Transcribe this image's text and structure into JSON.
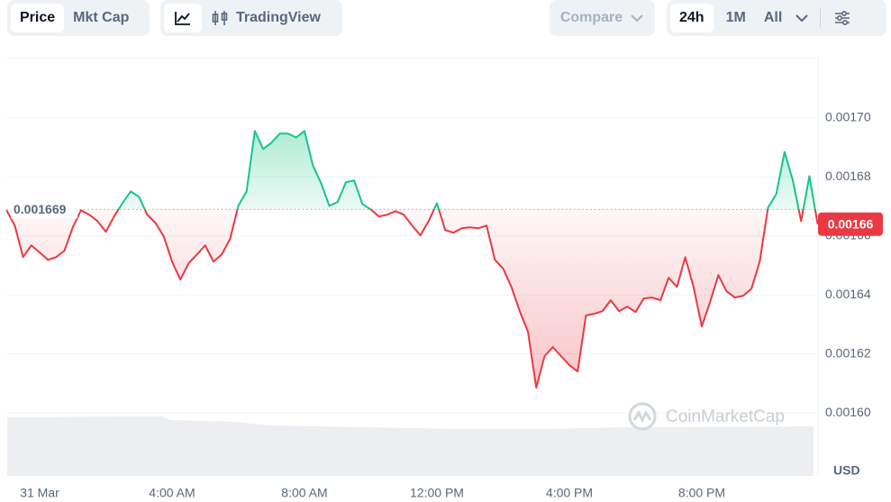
{
  "toolbar": {
    "price": "Price",
    "mkt_cap": "Mkt Cap",
    "trading_view": "TradingView",
    "compare": "Compare",
    "range_24h": "24h",
    "range_1m": "1M",
    "range_all": "All"
  },
  "chart_data": {
    "type": "line",
    "x": [
      -1,
      -0.75,
      -0.5,
      -0.25,
      0,
      0.25,
      0.5,
      0.75,
      1,
      1.25,
      1.5,
      1.75,
      2,
      2.25,
      2.5,
      2.75,
      3,
      3.25,
      3.5,
      3.75,
      4,
      4.25,
      4.5,
      4.75,
      5,
      5.25,
      5.5,
      5.75,
      6,
      6.25,
      6.5,
      6.75,
      7,
      7.25,
      7.5,
      7.75,
      8,
      8.25,
      8.5,
      8.75,
      9,
      9.25,
      9.5,
      9.75,
      10,
      10.25,
      10.5,
      10.75,
      11,
      11.25,
      11.5,
      11.75,
      12,
      12.25,
      12.5,
      12.75,
      13,
      13.25,
      13.5,
      13.75,
      14,
      14.25,
      14.5,
      14.75,
      15,
      15.25,
      15.5,
      15.75,
      16,
      16.25,
      16.5,
      16.75,
      17,
      17.25,
      17.5,
      17.75,
      18,
      18.25,
      18.5,
      18.75,
      19,
      19.25,
      19.5,
      19.75,
      20,
      20.25,
      20.5,
      20.75,
      21,
      21.25,
      21.5,
      21.75,
      22,
      22.25,
      22.5,
      22.75,
      23,
      23.25,
      23.5
    ],
    "series": [
      {
        "values": [
          0.0016687,
          0.0016635,
          0.0016528,
          0.0016568,
          0.0016544,
          0.0016519,
          0.0016528,
          0.001655,
          0.0016629,
          0.0016687,
          0.0016672,
          0.001665,
          0.0016614,
          0.0016666,
          0.0016711,
          0.0016751,
          0.0016733,
          0.0016672,
          0.0016644,
          0.0016598,
          0.0016513,
          0.0016452,
          0.0016507,
          0.0016537,
          0.0016568,
          0.0016513,
          0.0016537,
          0.0016589,
          0.0016702,
          0.0016751,
          0.0016956,
          0.0016895,
          0.0016916,
          0.0016947,
          0.0016947,
          0.0016934,
          0.0016956,
          0.001684,
          0.0016779,
          0.0016702,
          0.0016715,
          0.0016782,
          0.0016788,
          0.0016708,
          0.001669,
          0.0016666,
          0.0016672,
          0.0016684,
          0.0016672,
          0.0016635,
          0.0016602,
          0.001665,
          0.0016711,
          0.001662,
          0.0016611,
          0.0016626,
          0.0016629,
          0.0016626,
          0.0016635,
          0.0016519,
          0.0016489,
          0.0016427,
          0.0016345,
          0.0016275,
          0.0016085,
          0.0016192,
          0.0016223,
          0.0016192,
          0.0016162,
          0.001614,
          0.001633,
          0.0016336,
          0.0016345,
          0.0016382,
          0.0016345,
          0.001636,
          0.0016342,
          0.0016388,
          0.0016391,
          0.0016382,
          0.0016458,
          0.0016427,
          0.0016528,
          0.0016427,
          0.0016293,
          0.0016376,
          0.0016467,
          0.0016412,
          0.0016391,
          0.0016397,
          0.0016421,
          0.0016513,
          0.0016696,
          0.0016742,
          0.0016885,
          0.0016788,
          0.001665,
          0.0016803,
          0.001664
        ]
      }
    ],
    "baseline": 0.001669,
    "color_above": "#16c784",
    "color_below": "#ea3943",
    "current_price_label": "0.00166",
    "xlim": [
      -1,
      23.5
    ],
    "xticks": [
      {
        "value": 0,
        "label": "31 Mar"
      },
      {
        "value": 4,
        "label": "4:00 AM"
      },
      {
        "value": 8,
        "label": "8:00 AM"
      },
      {
        "value": 12,
        "label": "12:00 PM"
      },
      {
        "value": 16,
        "label": "4:00 PM"
      },
      {
        "value": 20,
        "label": "8:00 PM"
      }
    ],
    "ylim": [
      0.00158,
      0.00172
    ],
    "yticks": [
      {
        "value": 0.0016,
        "label": "0.00160"
      },
      0.00162,
      0.00164,
      0.00166,
      0.00168,
      {
        "value": 0.0017,
        "label": "0.00170"
      }
    ],
    "grid": true,
    "y_unit_label": "USD",
    "watermark": "CoinMarketCap"
  }
}
